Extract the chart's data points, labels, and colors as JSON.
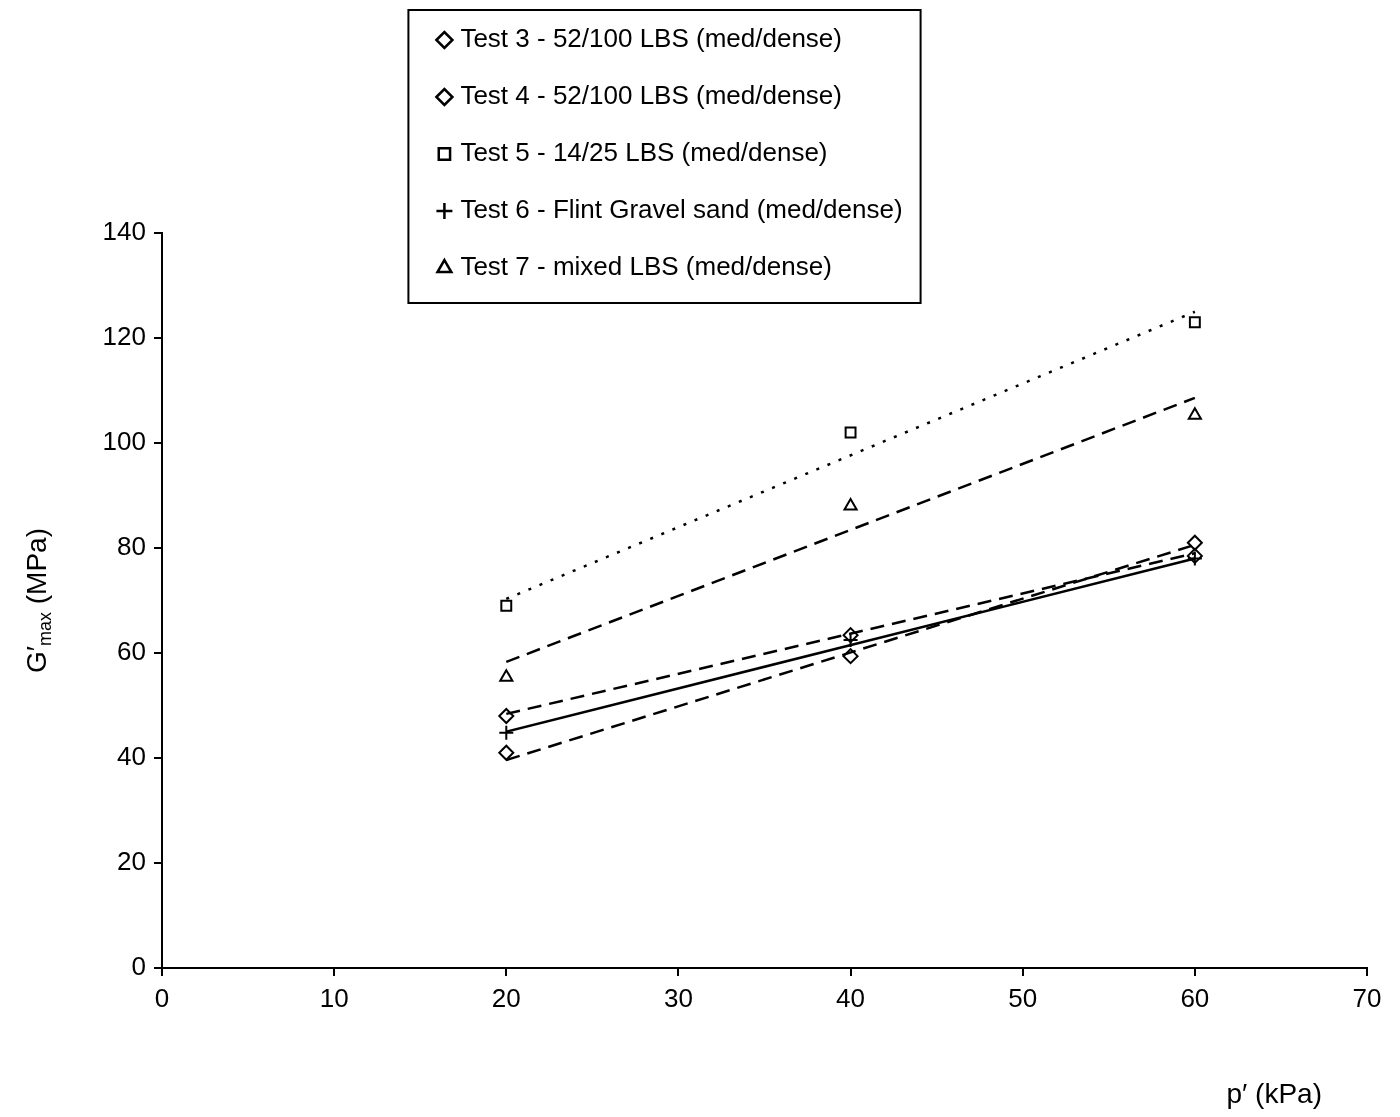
{
  "chart_data": {
    "type": "scatter",
    "xlabel": "p′ (kPa)",
    "ylabel": "G′$_{max}$ (MPa)",
    "xlim": [
      0,
      70
    ],
    "xticks": [
      0,
      10,
      20,
      30,
      40,
      50,
      60,
      70
    ],
    "ylim": [
      0,
      140
    ],
    "yticks": [
      0,
      20,
      40,
      60,
      80,
      100,
      120,
      140
    ],
    "grid": false,
    "legend": "top",
    "series": [
      {
        "name": "Test 3 - 52/100 LBS (med/dense)",
        "color": "#000000",
        "marker": "diamond",
        "x": [
          20,
          40,
          60
        ],
        "values": [
          48,
          63.4,
          78.5
        ]
      },
      {
        "name": "Test 4 - 52/100 LBS (med/dense)",
        "color": "#000000",
        "marker": "diamond",
        "x": [
          20,
          40,
          60
        ],
        "values": [
          41,
          59.4,
          81
        ]
      },
      {
        "name": "Test 5 - 14/25 LBS (med/dense)",
        "color": "#000000",
        "marker": "square",
        "x": [
          20,
          40,
          60
        ],
        "values": [
          69,
          102,
          123
        ]
      },
      {
        "name": "Test 6 - Flint Gravel sand (med/dense)",
        "color": "#000000",
        "marker": "cross",
        "x": [
          20,
          40,
          60
        ],
        "values": [
          44.8,
          62.5,
          78
        ]
      },
      {
        "name": "Test 7 - mixed LBS (med/dense)",
        "color": "#000000",
        "marker": "triangle",
        "x": [
          20,
          40,
          60
        ],
        "values": [
          55.4,
          88,
          105.3
        ]
      },
      {
        "type": "line",
        "color": "#000000",
        "marker": "none",
        "line_style": "dashed",
        "x": [
          20,
          60
        ],
        "values": [
          48.4,
          79
        ]
      },
      {
        "type": "line",
        "color": "#000000",
        "marker": "none",
        "line_style": "dashed",
        "x": [
          20,
          60
        ],
        "values": [
          39.6,
          80.6
        ]
      },
      {
        "type": "line",
        "color": "#000000",
        "marker": "none",
        "line_style": "dotted",
        "x": [
          20,
          60
        ],
        "values": [
          70.3,
          125
        ]
      },
      {
        "type": "line",
        "color": "#000000",
        "marker": "none",
        "line_style": "solid",
        "x": [
          20,
          60
        ],
        "values": [
          45,
          78
        ]
      },
      {
        "type": "line",
        "color": "#000000",
        "marker": "none",
        "line_style": "dashed",
        "x": [
          20,
          60
        ],
        "values": [
          58.3,
          108.6
        ]
      }
    ]
  }
}
